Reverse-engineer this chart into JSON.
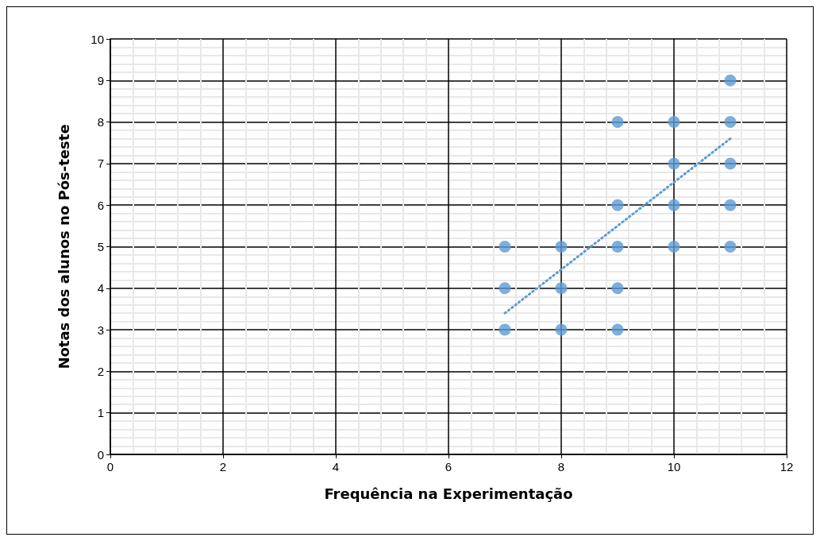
{
  "chart_data": {
    "type": "scatter",
    "xlabel": "Frequência na Experimentação",
    "ylabel": "Notas dos alunos no Pós-teste",
    "xlim": [
      0,
      12
    ],
    "xticks": [
      0,
      2,
      4,
      6,
      8,
      10,
      12
    ],
    "ylim": [
      0,
      10
    ],
    "yticks": [
      0,
      1,
      2,
      3,
      4,
      5,
      6,
      7,
      8,
      9,
      10
    ],
    "grid": true,
    "marker": "circle",
    "series": [
      {
        "color": "#5b9bd5",
        "x": [
          7,
          7,
          7,
          8,
          8,
          8,
          9,
          9,
          9,
          9,
          9,
          10,
          10,
          10,
          10,
          11,
          11,
          11,
          11,
          11
        ],
        "values": [
          3,
          4,
          5,
          3,
          4,
          5,
          3,
          4,
          5,
          6,
          8,
          5,
          6,
          7,
          8,
          5,
          6,
          7,
          8,
          9
        ]
      },
      {
        "type": "line",
        "color": "#5b9bd5",
        "line_style": "dotted",
        "marker": "none",
        "x": [
          7,
          11
        ],
        "values": [
          3.4,
          7.6
        ]
      }
    ]
  }
}
